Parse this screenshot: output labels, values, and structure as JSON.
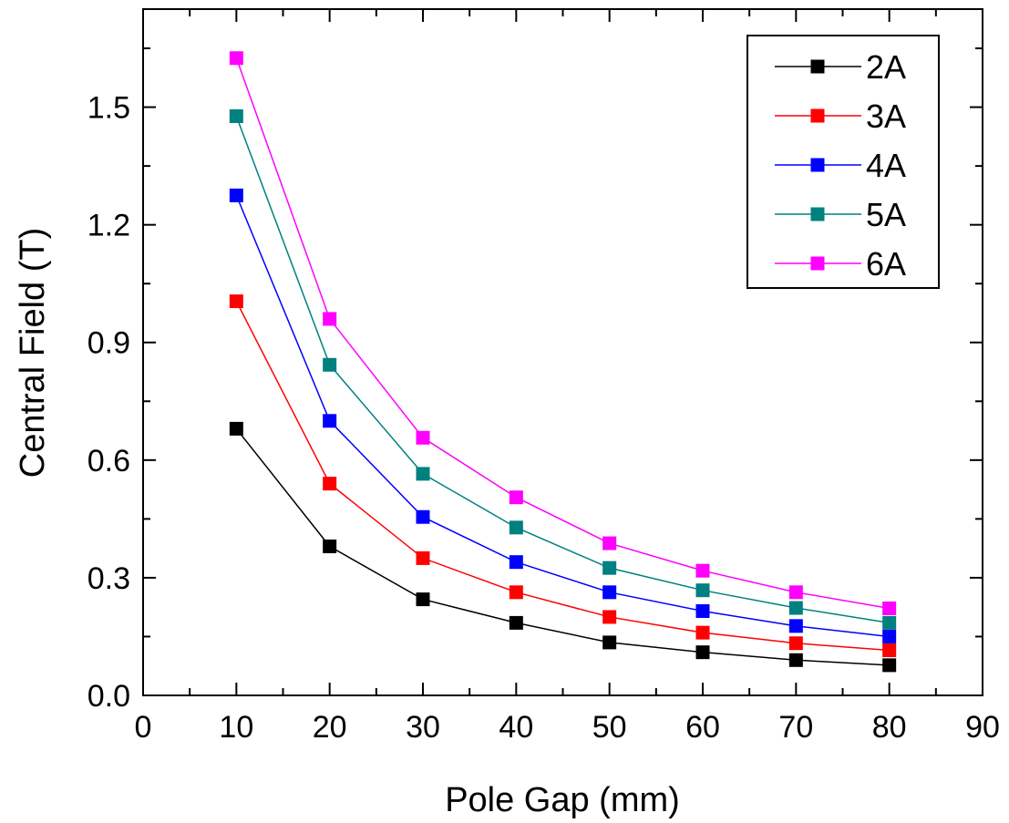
{
  "chart_data": {
    "type": "line",
    "xlabel": "Pole Gap (mm)",
    "ylabel": "Central Field (T)",
    "xlim": [
      0,
      90
    ],
    "ylim": [
      0,
      1.75
    ],
    "xticks": [
      0,
      10,
      20,
      30,
      40,
      50,
      60,
      70,
      80,
      90
    ],
    "yticks": [
      0.0,
      0.3,
      0.6,
      0.9,
      1.2,
      1.5
    ],
    "ytick_labels": [
      "0.0",
      "0.3",
      "0.6",
      "0.9",
      "1.2",
      "1.5"
    ],
    "grid": false,
    "legend_position": "top-right",
    "marker": "square",
    "x": [
      10,
      20,
      30,
      40,
      50,
      60,
      70,
      80
    ],
    "series": [
      {
        "name": "2A",
        "color": "#000000",
        "values": [
          0.68,
          0.38,
          0.245,
          0.185,
          0.135,
          0.11,
          0.09,
          0.077
        ]
      },
      {
        "name": "3A",
        "color": "#ff0000",
        "values": [
          1.005,
          0.54,
          0.35,
          0.263,
          0.2,
          0.16,
          0.133,
          0.115
        ]
      },
      {
        "name": "4A",
        "color": "#0000ff",
        "values": [
          1.275,
          0.7,
          0.455,
          0.34,
          0.263,
          0.215,
          0.177,
          0.15
        ]
      },
      {
        "name": "5A",
        "color": "#008080",
        "values": [
          1.477,
          0.843,
          0.565,
          0.428,
          0.325,
          0.268,
          0.223,
          0.185
        ]
      },
      {
        "name": "6A",
        "color": "#ff00ff",
        "values": [
          1.625,
          0.96,
          0.657,
          0.505,
          0.388,
          0.318,
          0.263,
          0.222
        ]
      }
    ]
  }
}
